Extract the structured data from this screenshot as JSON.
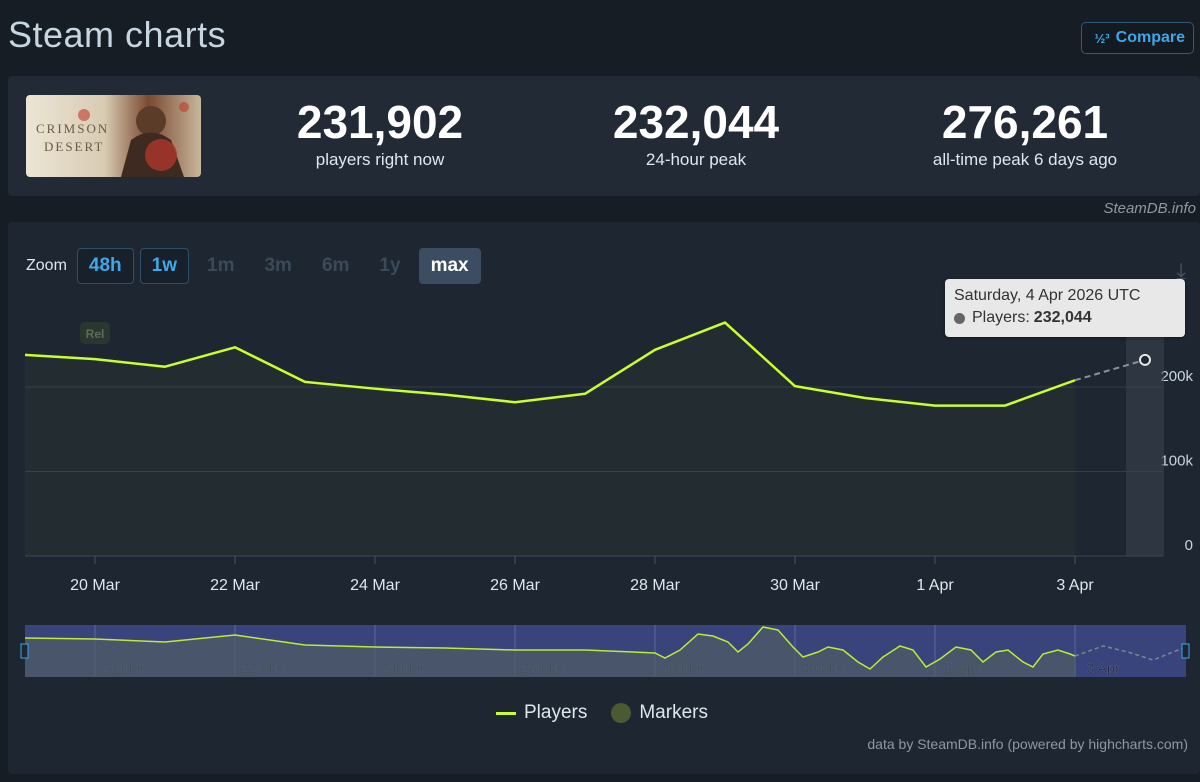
{
  "page": {
    "title": "Steam charts",
    "compare_label": "Compare",
    "compare_icon": "fraction-icon"
  },
  "stats": {
    "game_name": "CRIMSON DESERT",
    "players_now": "231,902",
    "players_now_label": "players right now",
    "peak_24h": "232,044",
    "peak_24h_label": "24-hour peak",
    "alltime_peak": "276,261",
    "alltime_peak_label": "all-time peak 6 days ago",
    "credit": "SteamDB.info"
  },
  "zoom": {
    "label": "Zoom",
    "buttons": [
      "48h",
      "1w",
      "1m",
      "3m",
      "6m",
      "1y",
      "max"
    ],
    "linked": [
      "48h",
      "1w"
    ],
    "active": "max"
  },
  "tooltip": {
    "date": "Saturday, 4 Apr 2026 UTC",
    "series": "Players:",
    "value": "232,044"
  },
  "legend": {
    "players": "Players",
    "markers": "Markers"
  },
  "credit_bottom": "data by SteamDB.info (powered by highcharts.com)",
  "colors": {
    "line": "#c8ff2c",
    "accent": "#3ea8e8",
    "panel": "#1e2631",
    "navigator_bg": "#3f4a8a"
  },
  "chart_data": {
    "type": "line",
    "ylabel": "",
    "xlabel": "",
    "ylim": [
      0,
      280000
    ],
    "yticks": [
      0,
      100000,
      200000
    ],
    "ytick_labels": [
      "0",
      "100k",
      "200k"
    ],
    "xtick_labels": [
      "20 Mar",
      "22 Mar",
      "24 Mar",
      "26 Mar",
      "28 Mar",
      "30 Mar",
      "1 Apr",
      "3 Apr"
    ],
    "x_first_day": 18.5,
    "grid": true,
    "legend_position": "bottom",
    "flag_label": "Rel",
    "series": [
      {
        "name": "Players",
        "x": [
          19,
          20,
          21,
          22,
          23,
          24,
          25,
          26,
          27,
          28,
          29,
          30,
          31,
          32,
          33,
          34
        ],
        "values": [
          238000,
          233000,
          224000,
          247000,
          206000,
          198000,
          191000,
          182000,
          192000,
          244000,
          276261,
          201000,
          187000,
          178000,
          178000,
          208000
        ],
        "projected_to": {
          "x": 35,
          "value": 232044
        }
      }
    ],
    "navigator": {
      "xtick_labels": [
        "20 Mar",
        "22 Mar",
        "24 Mar",
        "26 Mar",
        "28 Mar",
        "30 Mar",
        "1 Apr",
        "3 Apr"
      ]
    }
  }
}
